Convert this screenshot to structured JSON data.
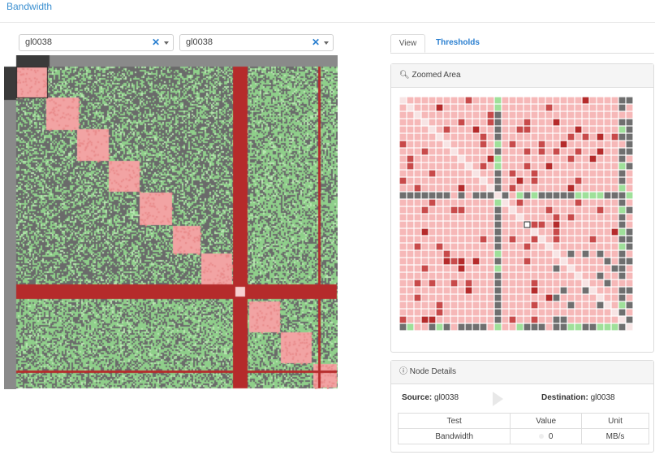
{
  "header": {
    "title": "Bandwidth"
  },
  "selectors": {
    "source": {
      "value": "gl0038",
      "clear_icon": "clear-x-icon",
      "caret_icon": "chevron-down-icon"
    },
    "destination": {
      "value": "gl0038",
      "clear_icon": "clear-x-icon",
      "caret_icon": "chevron-down-icon"
    }
  },
  "tabs": [
    {
      "label": "View",
      "active": true
    },
    {
      "label": "Thresholds",
      "active": false
    }
  ],
  "zoomed_panel": {
    "title": "Zoomed Area",
    "icon": "zoom-in-icon"
  },
  "details_panel": {
    "title": "Node Details",
    "icon": "info-circle-icon",
    "source_label": "Source:",
    "source_value": "gl0038",
    "destination_label": "Destination:",
    "destination_value": "gl0038",
    "table": {
      "headers": [
        "Test",
        "Value",
        "Unit"
      ],
      "rows": [
        {
          "test": "Bandwidth",
          "value": "0",
          "unit": "MB/s"
        }
      ]
    }
  },
  "colors": {
    "accent": "#2a7fd0",
    "link": "#3a8fd0",
    "cell_pink": "#f6b8b8",
    "cell_red": "#c84a4a",
    "cell_dark_red": "#b52b2b",
    "cell_gray": "#6f6f6f",
    "cell_green": "#9fe09a",
    "cell_light": "#f7e4e4"
  }
}
